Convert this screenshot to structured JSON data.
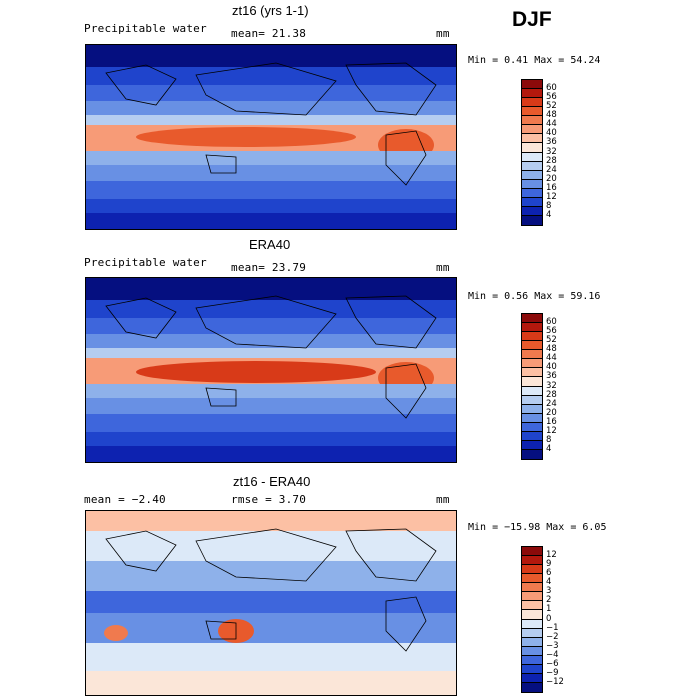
{
  "season": "DJF",
  "panels": [
    {
      "title": "zt16 (yrs 1-1)",
      "variable": "Precipitable water",
      "mean_text": "mean=  21.38",
      "units": "mm",
      "min_max_text": "Min =   0.41 Max =  54.24",
      "colorbar_levels": [
        "60",
        "56",
        "52",
        "48",
        "44",
        "40",
        "36",
        "32",
        "28",
        "24",
        "20",
        "16",
        "12",
        "8",
        "4"
      ],
      "colorbar_colors": [
        "#8b0a0a",
        "#b3180d",
        "#d83a18",
        "#e85a2c",
        "#f07a4e",
        "#f79b77",
        "#fcc0a4",
        "#fbe6d8",
        "#dce9f8",
        "#b5cdf0",
        "#8eb1ea",
        "#6890e4",
        "#3e66dc",
        "#1f44cc",
        "#0d22b0",
        "#050f80"
      ]
    },
    {
      "title": "ERA40",
      "variable": "Precipitable water",
      "mean_text": "mean=  23.79",
      "units": "mm",
      "min_max_text": "Min =   0.56 Max =  59.16",
      "colorbar_levels": [
        "60",
        "56",
        "52",
        "48",
        "44",
        "40",
        "36",
        "32",
        "28",
        "24",
        "20",
        "16",
        "12",
        "8",
        "4"
      ],
      "colorbar_colors": [
        "#8b0a0a",
        "#b3180d",
        "#d83a18",
        "#e85a2c",
        "#f07a4e",
        "#f79b77",
        "#fcc0a4",
        "#fbe6d8",
        "#dce9f8",
        "#b5cdf0",
        "#8eb1ea",
        "#6890e4",
        "#3e66dc",
        "#1f44cc",
        "#0d22b0",
        "#050f80"
      ]
    },
    {
      "title": "zt16 - ERA40",
      "variable": "",
      "mean_text": "mean =  −2.40",
      "rmse_text": "rmse =   3.70",
      "units": "mm",
      "min_max_text": "Min = −15.98 Max =   6.05",
      "colorbar_levels": [
        "12",
        "9",
        "6",
        "4",
        "3",
        "2",
        "1",
        "0",
        "−1",
        "−2",
        "−3",
        "−4",
        "−6",
        "−9",
        "−12"
      ],
      "colorbar_colors": [
        "#8b0a0a",
        "#b3180d",
        "#d83a18",
        "#e85a2c",
        "#f07a4e",
        "#f79b77",
        "#fcc0a4",
        "#fbe6d8",
        "#dce9f8",
        "#b5cdf0",
        "#8eb1ea",
        "#6890e4",
        "#3e66dc",
        "#1f44cc",
        "#0d22b0",
        "#050f80"
      ]
    }
  ]
}
